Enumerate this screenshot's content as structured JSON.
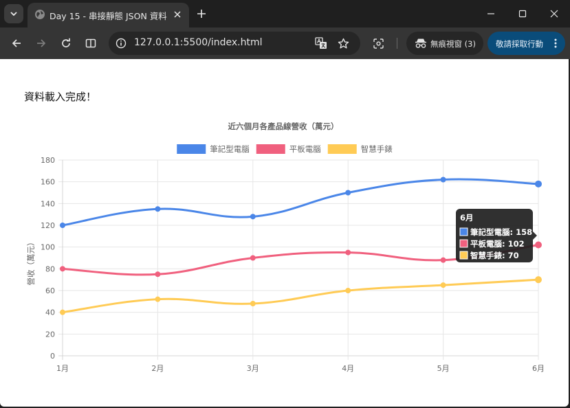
{
  "browser": {
    "tab": {
      "title": "Day 15 - 串接靜態 JSON 資料"
    },
    "url": "127.0.0.1:5500/index.html",
    "incognito_label": "無痕視窗 (3)",
    "action_label": "敬請採取行動",
    "icons": {
      "tab_search": "chevron-down-icon",
      "favicon": "globe-icon",
      "tab_close": "close-icon",
      "new_tab": "plus-icon",
      "minimize": "minimize-icon",
      "maximize": "maximize-icon",
      "close": "close-icon",
      "back": "back-arrow-icon",
      "forward": "forward-arrow-icon",
      "reload": "reload-icon",
      "split": "split-view-icon",
      "site_info": "site-info-icon",
      "translate": "translate-icon",
      "bookmark": "star-icon",
      "lens": "lens-icon",
      "incognito": "incognito-icon",
      "menu": "kebab-menu-icon"
    }
  },
  "page": {
    "status_text": "資料載入完成！"
  },
  "chart_data": {
    "type": "line",
    "title": "近六個月各產品線營收（萬元）",
    "ylabel": "營收（萬元）",
    "xlabel": "",
    "categories": [
      "1月",
      "2月",
      "3月",
      "4月",
      "5月",
      "6月"
    ],
    "ylim": [
      0,
      180
    ],
    "yticks": [
      0,
      20,
      40,
      60,
      80,
      100,
      120,
      140,
      160,
      180
    ],
    "grid": true,
    "legend_position": "top",
    "series": [
      {
        "name": "筆記型電腦",
        "values": [
          120,
          135,
          128,
          150,
          162,
          158
        ],
        "color": "#4a86e8"
      },
      {
        "name": "平板電腦",
        "values": [
          80,
          75,
          90,
          95,
          88,
          102
        ],
        "color": "#f0607e"
      },
      {
        "name": "智慧手錶",
        "values": [
          40,
          52,
          48,
          60,
          65,
          70
        ],
        "color": "#ffcb55"
      }
    ],
    "tooltip": {
      "title": "6月",
      "index": 5,
      "lines": [
        "筆記型電腦: 158",
        "平板電腦: 102",
        "智慧手錶: 70"
      ]
    }
  }
}
